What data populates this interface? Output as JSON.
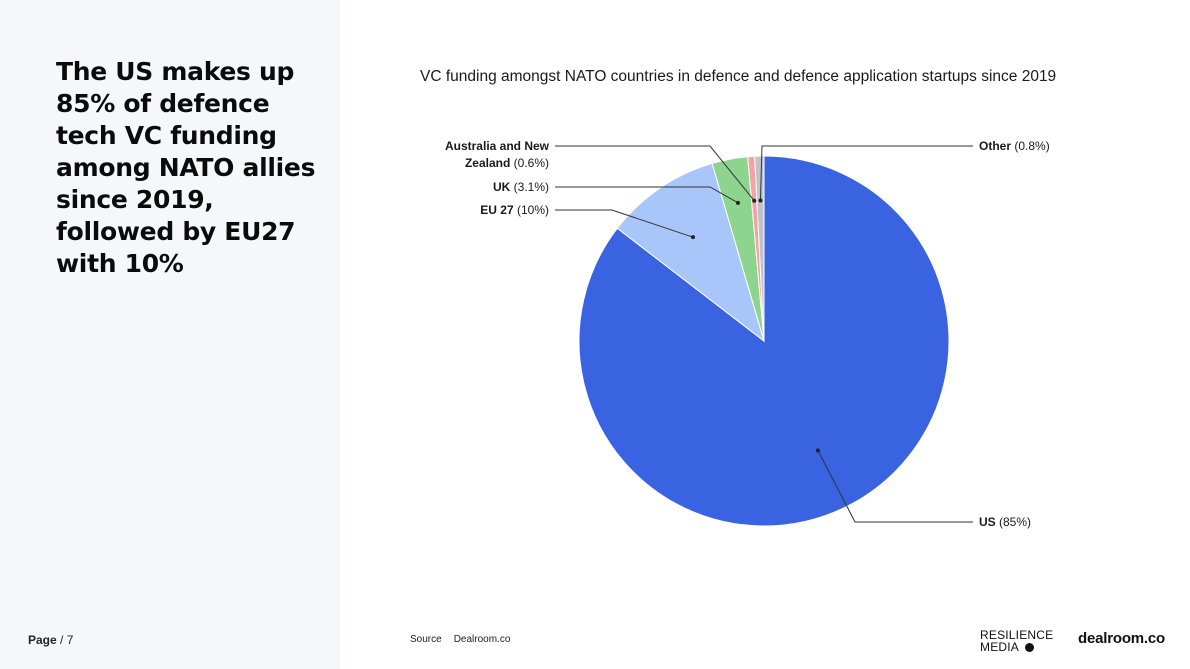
{
  "headline": "The US makes up 85% of defence tech VC funding among NATO allies since 2019, followed by EU27 with 10%",
  "page": {
    "label": "Page",
    "number": "/ 7"
  },
  "source": {
    "label": "Source",
    "value": "Dealroom.co"
  },
  "logos": {
    "resilience_line1": "RESILIENCE",
    "resilience_line2": "MEDIA",
    "dealroom": "dealroom.co"
  },
  "chart_data": {
    "type": "pie",
    "title": "VC funding amongst NATO countries in defence and defence application startups since 2019",
    "slices": [
      {
        "name": "US",
        "value": 85,
        "value_label": "(85%)",
        "color": "#3a63e2"
      },
      {
        "name": "EU 27",
        "value": 10,
        "value_label": "(10%)",
        "color": "#a9c6fb"
      },
      {
        "name": "UK",
        "value": 3.1,
        "value_label": "(3.1%)",
        "color": "#8dd48e"
      },
      {
        "name": "Australia and New Zealand",
        "name_line1": "Australia and New",
        "name_line2": "Zealand",
        "value": 0.6,
        "value_label": "(0.6%)",
        "color": "#f4a3a3"
      },
      {
        "name": "Other",
        "value": 0.8,
        "value_label": "(0.8%)",
        "color": "#bfc3c9"
      }
    ],
    "start_angle": "top, clockwise"
  }
}
